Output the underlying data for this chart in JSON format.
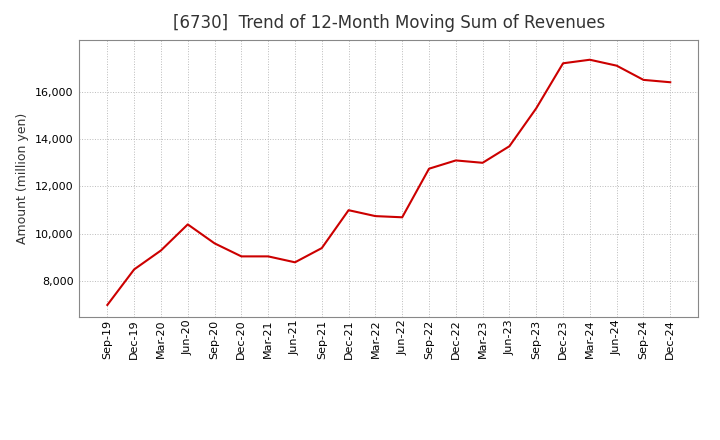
{
  "title": "[6730]  Trend of 12-Month Moving Sum of Revenues",
  "ylabel": "Amount (million yen)",
  "line_color": "#CC0000",
  "background_color": "#ffffff",
  "grid_color": "#bbbbbb",
  "x_labels": [
    "Sep-19",
    "Dec-19",
    "Mar-20",
    "Jun-20",
    "Sep-20",
    "Dec-20",
    "Mar-21",
    "Jun-21",
    "Sep-21",
    "Dec-21",
    "Mar-22",
    "Jun-22",
    "Sep-22",
    "Dec-22",
    "Mar-23",
    "Jun-23",
    "Sep-23",
    "Dec-23",
    "Mar-24",
    "Jun-24",
    "Sep-24",
    "Dec-24"
  ],
  "values": [
    7000,
    8500,
    9300,
    10400,
    9600,
    9050,
    9050,
    8800,
    9400,
    11000,
    10750,
    10700,
    12750,
    13100,
    13000,
    13700,
    15300,
    17200,
    17350,
    17100,
    16500,
    16400
  ],
  "ylim": [
    6500,
    18200
  ],
  "yticks": [
    8000,
    10000,
    12000,
    14000,
    16000
  ],
  "title_fontsize": 12,
  "title_color": "#333333",
  "ylabel_fontsize": 9,
  "tick_fontsize": 8,
  "line_width": 1.5
}
